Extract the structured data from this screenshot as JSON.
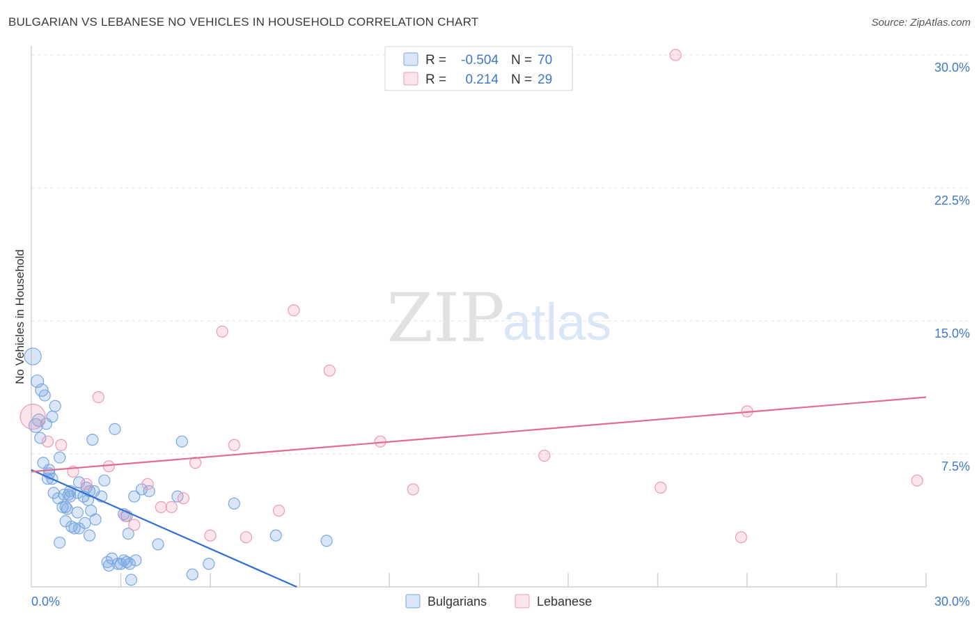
{
  "title": "BULGARIAN VS LEBANESE NO VEHICLES IN HOUSEHOLD CORRELATION CHART",
  "source": "Source: ZipAtlas.com",
  "watermark": {
    "zip": "ZIP",
    "atlas": "atlas"
  },
  "colors": {
    "blue": "#7aa7e0",
    "blue_fill": "rgba(120,166,228,0.28)",
    "blue_line": "#2f6fd1",
    "pink": "#ea9ab5",
    "pink_fill": "rgba(236,150,180,0.25)",
    "pink_line": "#e06b96",
    "axis_text": "#3f78c8",
    "grid": "#e2e2e2"
  },
  "legend": {
    "rows": [
      {
        "r_label": "R =",
        "r_value": "-0.504",
        "n_label": "N =",
        "n_value": "70"
      },
      {
        "r_label": "R =",
        "r_value": "0.214",
        "n_label": "N =",
        "n_value": "29"
      }
    ]
  },
  "bottom_legend": [
    "Bulgarians",
    "Lebanese"
  ],
  "chart_data": {
    "type": "scatter",
    "title": "BULGARIAN VS LEBANESE NO VEHICLES IN HOUSEHOLD CORRELATION CHART",
    "xlabel": "",
    "ylabel": "No Vehicles in Household",
    "xlim": [
      0,
      30
    ],
    "ylim": [
      0,
      30
    ],
    "x_tick_labels": [
      "0.0%",
      "30.0%"
    ],
    "y_ticks": [
      7.5,
      15.0,
      22.5,
      30.0
    ],
    "y_tick_labels": [
      "7.5%",
      "15.0%",
      "22.5%",
      "30.0%"
    ],
    "series": [
      {
        "name": "Bulgarians",
        "r": -0.504,
        "n": 70,
        "trend": {
          "x": [
            0,
            8.9
          ],
          "y": [
            6.6,
            0
          ]
        },
        "points": [
          [
            0.05,
            13.0,
            12
          ],
          [
            0.2,
            11.6,
            9
          ],
          [
            0.35,
            11.1,
            9
          ],
          [
            0.25,
            9.4,
            9
          ],
          [
            0.15,
            9.1,
            10
          ],
          [
            0.45,
            10.8,
            8
          ],
          [
            0.5,
            9.2,
            8
          ],
          [
            0.7,
            9.6,
            8
          ],
          [
            0.8,
            10.2,
            8
          ],
          [
            0.3,
            8.4,
            8
          ],
          [
            0.4,
            7.0,
            8
          ],
          [
            0.6,
            6.6,
            8
          ],
          [
            0.95,
            7.3,
            8
          ],
          [
            0.55,
            6.1,
            8
          ],
          [
            0.7,
            6.1,
            8
          ],
          [
            0.75,
            5.3,
            8
          ],
          [
            0.9,
            5.0,
            8
          ],
          [
            1.1,
            5.2,
            8
          ],
          [
            1.25,
            5.2,
            8
          ],
          [
            1.3,
            5.4,
            8
          ],
          [
            1.05,
            4.5,
            8
          ],
          [
            1.15,
            4.5,
            8
          ],
          [
            1.55,
            5.3,
            8
          ],
          [
            1.6,
            5.9,
            8
          ],
          [
            1.75,
            5.1,
            8
          ],
          [
            1.85,
            5.6,
            8
          ],
          [
            1.95,
            5.4,
            8
          ],
          [
            1.9,
            4.9,
            8
          ],
          [
            2.1,
            5.4,
            8
          ],
          [
            2.35,
            5.1,
            8
          ],
          [
            2.45,
            6.0,
            8
          ],
          [
            1.55,
            4.2,
            8
          ],
          [
            1.15,
            3.7,
            8
          ],
          [
            1.35,
            3.4,
            8
          ],
          [
            1.45,
            3.3,
            8
          ],
          [
            1.6,
            3.3,
            8
          ],
          [
            1.8,
            3.6,
            8
          ],
          [
            1.95,
            2.9,
            8
          ],
          [
            2.15,
            3.8,
            8
          ],
          [
            0.95,
            2.5,
            8
          ],
          [
            2.05,
            8.3,
            8
          ],
          [
            2.8,
            8.9,
            8
          ],
          [
            3.1,
            4.1,
            8
          ],
          [
            3.2,
            4.0,
            8
          ],
          [
            3.25,
            3.0,
            8
          ],
          [
            3.45,
            5.1,
            8
          ],
          [
            3.7,
            5.5,
            8
          ],
          [
            3.95,
            5.4,
            8
          ],
          [
            4.25,
            2.4,
            8
          ],
          [
            4.9,
            5.1,
            8
          ],
          [
            5.05,
            8.2,
            8
          ],
          [
            5.4,
            0.7,
            8
          ],
          [
            5.95,
            1.3,
            8
          ],
          [
            6.8,
            4.7,
            8
          ],
          [
            8.2,
            2.9,
            8
          ],
          [
            9.9,
            2.6,
            8
          ],
          [
            2.55,
            1.4,
            8
          ],
          [
            2.6,
            1.2,
            8
          ],
          [
            2.7,
            1.6,
            8
          ],
          [
            2.9,
            1.3,
            8
          ],
          [
            3.0,
            1.3,
            8
          ],
          [
            3.1,
            1.5,
            8
          ],
          [
            3.2,
            1.4,
            8
          ],
          [
            3.3,
            1.3,
            8
          ],
          [
            3.35,
            0.4,
            8
          ],
          [
            3.5,
            1.5,
            8
          ],
          [
            0.6,
            6.4,
            8
          ],
          [
            1.2,
            4.4,
            8
          ],
          [
            2.0,
            4.3,
            8
          ],
          [
            1.3,
            5.1,
            8
          ]
        ]
      },
      {
        "name": "Lebanese",
        "r": 0.214,
        "n": 29,
        "trend": {
          "x": [
            0,
            30
          ],
          "y": [
            6.5,
            10.7
          ]
        },
        "points": [
          [
            0.05,
            9.6,
            18
          ],
          [
            0.55,
            8.2,
            8
          ],
          [
            1.0,
            8.0,
            8
          ],
          [
            1.4,
            6.5,
            8
          ],
          [
            1.85,
            5.8,
            8
          ],
          [
            2.25,
            10.7,
            8
          ],
          [
            2.6,
            6.8,
            8
          ],
          [
            3.15,
            4.0,
            8
          ],
          [
            3.45,
            3.5,
            8
          ],
          [
            3.9,
            5.8,
            8
          ],
          [
            4.35,
            4.5,
            8
          ],
          [
            4.7,
            4.5,
            8
          ],
          [
            5.1,
            5.0,
            8
          ],
          [
            5.5,
            7.0,
            8
          ],
          [
            6.0,
            2.9,
            8
          ],
          [
            6.4,
            14.4,
            8
          ],
          [
            6.8,
            8.0,
            8
          ],
          [
            7.2,
            2.8,
            8
          ],
          [
            8.3,
            4.3,
            8
          ],
          [
            8.8,
            15.6,
            8
          ],
          [
            10.0,
            12.2,
            8
          ],
          [
            11.7,
            8.2,
            8
          ],
          [
            12.8,
            5.5,
            8
          ],
          [
            17.2,
            7.4,
            8
          ],
          [
            21.1,
            5.6,
            8
          ],
          [
            21.6,
            30.0,
            8
          ],
          [
            23.8,
            2.8,
            8
          ],
          [
            24.0,
            9.9,
            8
          ],
          [
            29.7,
            6.0,
            8
          ]
        ]
      }
    ]
  }
}
